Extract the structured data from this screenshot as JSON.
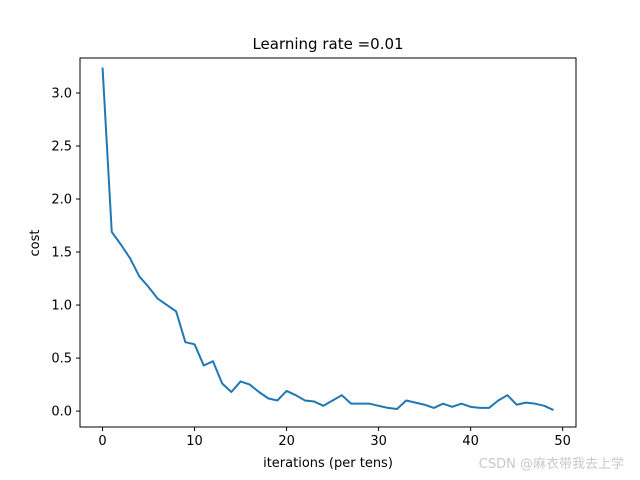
{
  "chart_data": {
    "type": "line",
    "title": "Learning rate =0.01",
    "xlabel": "iterations (per tens)",
    "ylabel": "cost",
    "xlim": [
      -2.45,
      51.45
    ],
    "ylim": [
      -0.15,
      3.33
    ],
    "xticks": [
      0,
      10,
      20,
      30,
      40,
      50
    ],
    "xtick_labels": [
      "0",
      "10",
      "20",
      "30",
      "40",
      "50"
    ],
    "yticks": [
      0.0,
      0.5,
      1.0,
      1.5,
      2.0,
      2.5,
      3.0
    ],
    "ytick_labels": [
      "0.0",
      "0.5",
      "1.0",
      "1.5",
      "2.0",
      "2.5",
      "3.0"
    ],
    "grid": false,
    "series": [
      {
        "color": "#1f77b4",
        "x": [
          0,
          1,
          2,
          3,
          4,
          5,
          6,
          7,
          8,
          9,
          10,
          11,
          12,
          13,
          14,
          15,
          16,
          17,
          18,
          19,
          20,
          21,
          22,
          23,
          24,
          25,
          26,
          27,
          28,
          29,
          30,
          31,
          32,
          33,
          34,
          35,
          36,
          37,
          38,
          39,
          40,
          41,
          42,
          43,
          44,
          45,
          46,
          47,
          48,
          49
        ],
        "values": [
          3.24,
          1.69,
          1.57,
          1.44,
          1.27,
          1.17,
          1.06,
          1.0,
          0.94,
          0.65,
          0.63,
          0.43,
          0.47,
          0.26,
          0.18,
          0.28,
          0.25,
          0.18,
          0.12,
          0.1,
          0.19,
          0.15,
          0.1,
          0.09,
          0.05,
          0.1,
          0.15,
          0.07,
          0.07,
          0.07,
          0.05,
          0.03,
          0.02,
          0.1,
          0.08,
          0.06,
          0.03,
          0.07,
          0.04,
          0.07,
          0.04,
          0.03,
          0.03,
          0.1,
          0.15,
          0.06,
          0.08,
          0.07,
          0.05,
          0.01
        ]
      }
    ]
  },
  "watermark": "CSDN @麻衣带我去上学"
}
